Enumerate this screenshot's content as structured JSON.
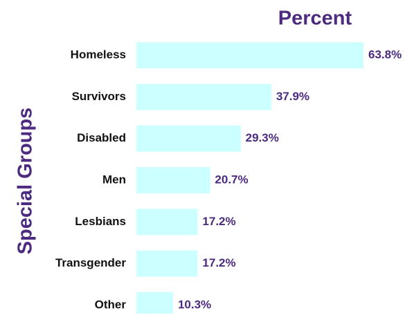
{
  "chart_data": {
    "type": "bar",
    "orientation": "horizontal",
    "title": "Percent",
    "y_label": "Special Groups",
    "categories": [
      "Homeless",
      "Survivors",
      "Disabled",
      "Men",
      "Lesbians",
      "Transgender",
      "Other"
    ],
    "values": [
      63.8,
      37.9,
      29.3,
      20.7,
      17.2,
      17.2,
      10.3
    ],
    "value_labels": [
      "63.8%",
      "37.9%",
      "29.3%",
      "20.7%",
      "17.2%",
      "17.2%",
      "10.3%"
    ],
    "color": "#ccffff"
  }
}
